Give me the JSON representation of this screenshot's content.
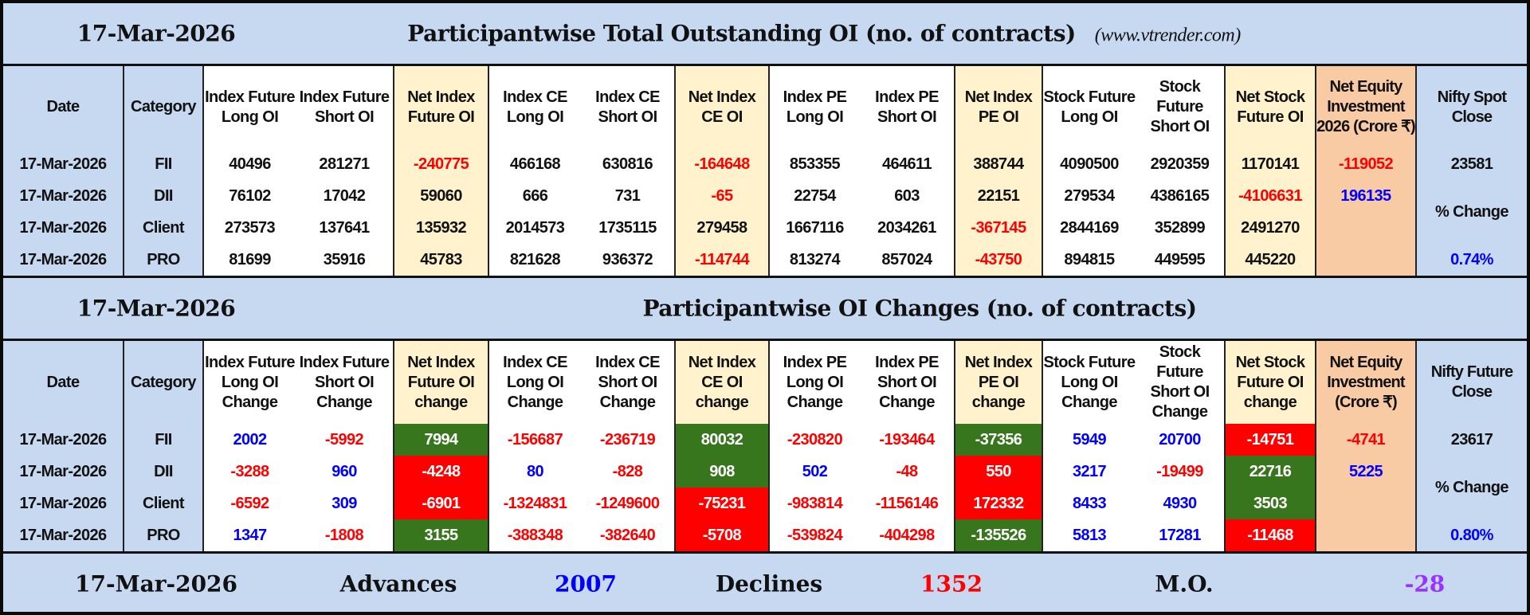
{
  "colors": {
    "header_blue": "#c6d9f1",
    "net_cream": "#fff2cc",
    "equity_orange": "#f8cba5",
    "positive_fill": "#38761d",
    "negative_fill": "#ff0000",
    "positive_text": "#0000ff",
    "negative_text": "#ff0000",
    "mo_text": "#9933ff"
  },
  "section1": {
    "date": "17-Mar-2026",
    "title": "Participantwise Total Outstanding OI (no. of contracts)",
    "site": "(www.vtrender.com)",
    "headers": [
      "Date",
      "Category",
      "Index Future Long OI",
      "Index Future Short OI",
      "Net Index Future OI",
      "Index CE Long OI",
      "Index CE Short OI",
      "Net Index CE OI",
      "Index PE Long OI",
      "Index PE Short OI",
      "Net Index PE OI",
      "Stock Future Long OI",
      "Stock Future Short OI",
      "Net Stock Future OI",
      "Net Equity Investment 2026 (Crore ₹)",
      "Nifty Spot Close"
    ],
    "rows": [
      [
        "17-Mar-2026",
        "FII",
        "40496",
        "281271",
        "-240775",
        "466168",
        "630816",
        "-164648",
        "853355",
        "464611",
        "388744",
        "4090500",
        "2920359",
        "1170141",
        "-119052"
      ],
      [
        "17-Mar-2026",
        "DII",
        "76102",
        "17042",
        "59060",
        "666",
        "731",
        "-65",
        "22754",
        "603",
        "22151",
        "279534",
        "4386165",
        "-4106631",
        "196135"
      ],
      [
        "17-Mar-2026",
        "Client",
        "273573",
        "137641",
        "135932",
        "2014573",
        "1735115",
        "279458",
        "1667116",
        "2034261",
        "-367145",
        "2844169",
        "352899",
        "2491270",
        ""
      ],
      [
        "17-Mar-2026",
        "PRO",
        "81699",
        "35916",
        "45783",
        "821628",
        "936372",
        "-114744",
        "813274",
        "857024",
        "-43750",
        "894815",
        "449595",
        "445220",
        ""
      ]
    ],
    "nifty_close": "23581",
    "pct_label": "% Change",
    "pct_value": "0.74%"
  },
  "section2": {
    "date": "17-Mar-2026",
    "title": "Participantwise OI Changes (no. of contracts)",
    "headers": [
      "Date",
      "Category",
      "Index Future Long OI Change",
      "Index Future Short OI Change",
      "Net Index Future OI change",
      "Index CE Long OI Change",
      "Index CE Short OI Change",
      "Net Index CE OI change",
      "Index PE Long OI Change",
      "Index PE Short OI Change",
      "Net Index PE OI change",
      "Stock Future Long OI Change",
      "Stock Future Short OI Change",
      "Net Stock Future OI change",
      "Net Equity Investment (Crore ₹)",
      "Nifty Future Close"
    ],
    "rows": [
      [
        "17-Mar-2026",
        "FII",
        "2002",
        "-5992",
        "7994",
        "-156687",
        "-236719",
        "80032",
        "-230820",
        "-193464",
        "-37356",
        "5949",
        "20700",
        "-14751",
        "-4741"
      ],
      [
        "17-Mar-2026",
        "DII",
        "-3288",
        "960",
        "-4248",
        "80",
        "-828",
        "908",
        "502",
        "-48",
        "550",
        "3217",
        "-19499",
        "22716",
        "5225"
      ],
      [
        "17-Mar-2026",
        "Client",
        "-6592",
        "309",
        "-6901",
        "-1324831",
        "-1249600",
        "-75231",
        "-983814",
        "-1156146",
        "172332",
        "8433",
        "4930",
        "3503",
        ""
      ],
      [
        "17-Mar-2026",
        "PRO",
        "1347",
        "-1808",
        "3155",
        "-388348",
        "-382640",
        "-5708",
        "-539824",
        "-404298",
        "-135526",
        "5813",
        "17281",
        "-11468",
        ""
      ]
    ],
    "net_highlights": [
      [
        "green",
        "green",
        "green",
        "red"
      ],
      [
        "red",
        "green",
        "red",
        "green"
      ],
      [
        "red",
        "red",
        "red",
        "green"
      ],
      [
        "green",
        "red",
        "green",
        "red"
      ]
    ],
    "nifty_close": "23617",
    "pct_label": "% Change",
    "pct_value": "0.80%"
  },
  "footer": {
    "date": "17-Mar-2026",
    "advances_label": "Advances",
    "advances": "2007",
    "declines_label": "Declines",
    "declines": "1352",
    "mo_label": "M.O.",
    "mo": "-28"
  }
}
